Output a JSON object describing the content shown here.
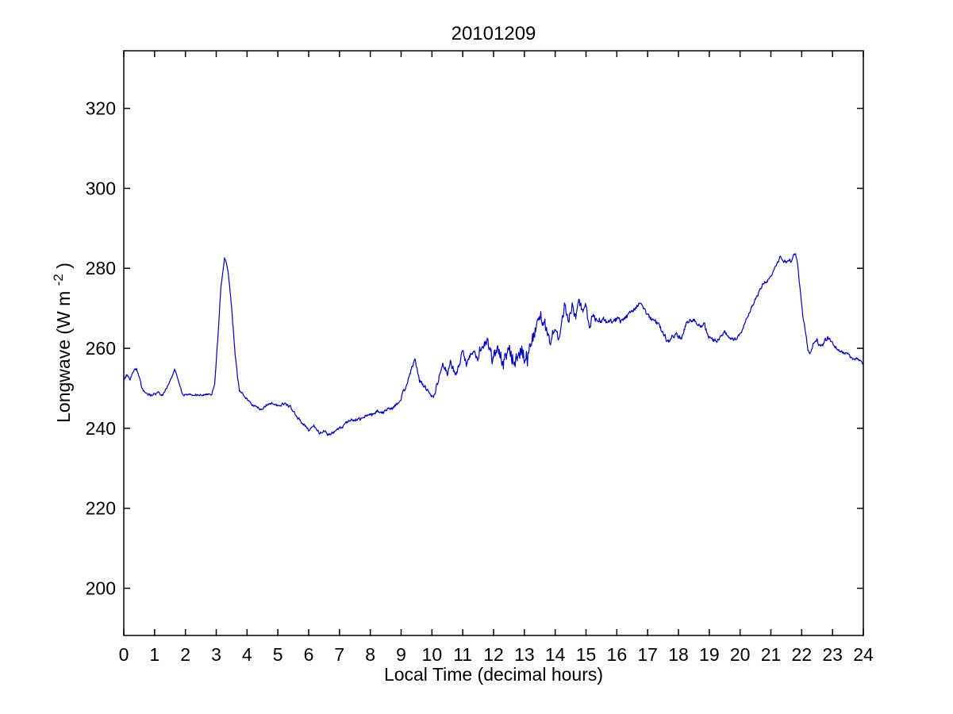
{
  "figure": {
    "background": "#ffffff",
    "axis_color": "#000000"
  },
  "chart_data": {
    "type": "line",
    "title": "20101209",
    "xlabel": "Local Time (decimal hours)",
    "ylabel": "Longwave (W m-2)",
    "ylabel_parts": {
      "main": "Longwave (W m",
      "sup": "-2",
      "close": ")"
    },
    "axes": {
      "xlim": [
        0,
        24
      ],
      "ylim": [
        188.2,
        334.4
      ],
      "xticks": [
        0,
        1,
        2,
        3,
        4,
        5,
        6,
        7,
        8,
        9,
        10,
        11,
        12,
        13,
        14,
        15,
        16,
        17,
        18,
        19,
        20,
        21,
        22,
        23,
        24
      ],
      "yticks": [
        200,
        220,
        240,
        260,
        280,
        300,
        320
      ],
      "grid": false,
      "box": true
    },
    "series": [
      {
        "name": "longwave",
        "color": "#0000BB",
        "sampling_hours": 0.0166667,
        "noise_seed": 20101209,
        "keypoints_format": [
          "t_hours",
          "value_W_m2",
          "noise_amplitude"
        ],
        "keypoints": [
          [
            0.0,
            252.0,
            0.6
          ],
          [
            0.1,
            253.2,
            0.6
          ],
          [
            0.19,
            251.8,
            0.6
          ],
          [
            0.31,
            253.8,
            0.5
          ],
          [
            0.41,
            255.0,
            0.4
          ],
          [
            0.49,
            252.8,
            0.5
          ],
          [
            0.57,
            250.4,
            0.4
          ],
          [
            0.66,
            249.2,
            0.4
          ],
          [
            0.75,
            248.4,
            0.35
          ],
          [
            1.0,
            248.5,
            0.35
          ],
          [
            1.13,
            248.8,
            0.35
          ],
          [
            1.26,
            248.2,
            0.3
          ],
          [
            1.44,
            250.8,
            0.3
          ],
          [
            1.57,
            252.8,
            0.3
          ],
          [
            1.65,
            255.0,
            0.3
          ],
          [
            1.78,
            251.8,
            0.3
          ],
          [
            1.91,
            248.4,
            0.3
          ],
          [
            2.1,
            248.3,
            0.3
          ],
          [
            2.34,
            248.4,
            0.3
          ],
          [
            2.6,
            248.3,
            0.3
          ],
          [
            2.85,
            248.6,
            0.3
          ],
          [
            2.95,
            251.0,
            0.3
          ],
          [
            3.05,
            262.0,
            0.5
          ],
          [
            3.15,
            275.0,
            0.5
          ],
          [
            3.27,
            282.5,
            0.5
          ],
          [
            3.38,
            279.5,
            0.5
          ],
          [
            3.5,
            270.0,
            0.5
          ],
          [
            3.62,
            257.5,
            0.5
          ],
          [
            3.75,
            249.5,
            0.4
          ],
          [
            3.9,
            248.0,
            0.4
          ],
          [
            4.1,
            246.3,
            0.35
          ],
          [
            4.3,
            245.4,
            0.35
          ],
          [
            4.45,
            244.7,
            0.35
          ],
          [
            4.62,
            245.8,
            0.35
          ],
          [
            4.8,
            246.2,
            0.35
          ],
          [
            5.0,
            245.7,
            0.35
          ],
          [
            5.2,
            246.1,
            0.35
          ],
          [
            5.4,
            245.4,
            0.35
          ],
          [
            5.6,
            243.2,
            0.4
          ],
          [
            5.8,
            241.2,
            0.4
          ],
          [
            6.0,
            239.6,
            0.4
          ],
          [
            6.18,
            240.6,
            0.4
          ],
          [
            6.35,
            238.9,
            0.4
          ],
          [
            6.5,
            239.4,
            0.4
          ],
          [
            6.65,
            238.4,
            0.4
          ],
          [
            6.85,
            239.2,
            0.4
          ],
          [
            7.1,
            240.3,
            0.4
          ],
          [
            7.35,
            242.1,
            0.45
          ],
          [
            7.6,
            242.0,
            0.45
          ],
          [
            7.85,
            243.1,
            0.45
          ],
          [
            8.05,
            243.3,
            0.45
          ],
          [
            8.2,
            244.3,
            0.45
          ],
          [
            8.35,
            243.6,
            0.45
          ],
          [
            8.55,
            244.6,
            0.45
          ],
          [
            8.75,
            245.3,
            0.45
          ],
          [
            8.95,
            246.5,
            0.5
          ],
          [
            9.15,
            250.5,
            0.5
          ],
          [
            9.3,
            254.0,
            0.5
          ],
          [
            9.45,
            257.2,
            0.5
          ],
          [
            9.6,
            252.0,
            0.6
          ],
          [
            9.75,
            250.4,
            0.6
          ],
          [
            9.9,
            249.0,
            0.6
          ],
          [
            10.05,
            247.6,
            0.6
          ],
          [
            10.2,
            252.0,
            0.8
          ],
          [
            10.35,
            256.2,
            0.8
          ],
          [
            10.5,
            254.0,
            0.9
          ],
          [
            10.62,
            256.6,
            0.9
          ],
          [
            10.75,
            253.2,
            0.9
          ],
          [
            10.9,
            256.0,
            1.0
          ],
          [
            11.0,
            258.8,
            1.0
          ],
          [
            11.12,
            255.5,
            1.0
          ],
          [
            11.3,
            259.2,
            1.1
          ],
          [
            11.45,
            257.0,
            1.3
          ],
          [
            11.6,
            260.5,
            1.4
          ],
          [
            11.77,
            262.0,
            1.5
          ],
          [
            11.95,
            257.5,
            1.8
          ],
          [
            12.1,
            260.0,
            2.0
          ],
          [
            12.3,
            256.0,
            2.2
          ],
          [
            12.5,
            259.0,
            2.2
          ],
          [
            12.7,
            257.0,
            2.2
          ],
          [
            12.9,
            259.5,
            2.2
          ],
          [
            13.1,
            257.5,
            2.2
          ],
          [
            13.3,
            262.5,
            2.0
          ],
          [
            13.5,
            268.5,
            1.6
          ],
          [
            13.65,
            266.5,
            1.6
          ],
          [
            13.8,
            261.5,
            1.6
          ],
          [
            13.95,
            264.5,
            1.6
          ],
          [
            14.1,
            262.5,
            1.5
          ],
          [
            14.31,
            271.0,
            1.2
          ],
          [
            14.42,
            266.5,
            1.4
          ],
          [
            14.55,
            271.0,
            1.4
          ],
          [
            14.65,
            267.2,
            1.4
          ],
          [
            14.78,
            271.5,
            1.2
          ],
          [
            14.88,
            269.6,
            1.2
          ],
          [
            15.0,
            271.0,
            1.0
          ],
          [
            15.1,
            264.8,
            1.0
          ],
          [
            15.22,
            268.2,
            0.9
          ],
          [
            15.35,
            266.8,
            0.8
          ],
          [
            15.5,
            267.3,
            0.8
          ],
          [
            15.65,
            266.6,
            0.8
          ],
          [
            15.8,
            267.0,
            0.8
          ],
          [
            16.0,
            267.2,
            0.7
          ],
          [
            16.2,
            266.9,
            0.7
          ],
          [
            16.4,
            268.6,
            0.6
          ],
          [
            16.6,
            270.0,
            0.6
          ],
          [
            16.76,
            271.4,
            0.5
          ],
          [
            16.93,
            269.0,
            0.6
          ],
          [
            17.1,
            267.6,
            0.6
          ],
          [
            17.3,
            266.3,
            0.6
          ],
          [
            17.5,
            264.0,
            0.6
          ],
          [
            17.66,
            261.4,
            0.6
          ],
          [
            17.8,
            263.1,
            0.6
          ],
          [
            17.95,
            263.3,
            0.6
          ],
          [
            18.1,
            262.5,
            0.6
          ],
          [
            18.26,
            266.3,
            0.6
          ],
          [
            18.47,
            267.3,
            0.6
          ],
          [
            18.65,
            265.7,
            0.6
          ],
          [
            18.85,
            266.1,
            0.6
          ],
          [
            18.95,
            263.1,
            0.6
          ],
          [
            19.1,
            262.1,
            0.5
          ],
          [
            19.3,
            261.9,
            0.5
          ],
          [
            19.5,
            264.1,
            0.5
          ],
          [
            19.72,
            262.3,
            0.5
          ],
          [
            19.9,
            262.2,
            0.5
          ],
          [
            20.06,
            264.1,
            0.5
          ],
          [
            20.2,
            267.0,
            0.5
          ],
          [
            20.35,
            269.8,
            0.5
          ],
          [
            20.5,
            272.5,
            0.5
          ],
          [
            20.65,
            274.6,
            0.5
          ],
          [
            20.78,
            276.5,
            0.5
          ],
          [
            20.9,
            277.2,
            0.5
          ],
          [
            21.05,
            278.9,
            0.5
          ],
          [
            21.2,
            280.9,
            0.5
          ],
          [
            21.3,
            282.5,
            0.5
          ],
          [
            21.42,
            281.8,
            0.5
          ],
          [
            21.56,
            281.5,
            0.5
          ],
          [
            21.66,
            281.9,
            0.5
          ],
          [
            21.74,
            284.0,
            0.4
          ],
          [
            21.8,
            283.3,
            0.4
          ],
          [
            21.88,
            280.5,
            0.4
          ],
          [
            21.95,
            274.5,
            0.4
          ],
          [
            22.03,
            268.5,
            0.4
          ],
          [
            22.12,
            264.0,
            0.4
          ],
          [
            22.2,
            260.0,
            0.5
          ],
          [
            22.26,
            259.0,
            0.5
          ],
          [
            22.38,
            261.7,
            0.6
          ],
          [
            22.5,
            261.8,
            0.6
          ],
          [
            22.63,
            260.2,
            0.6
          ],
          [
            22.84,
            262.9,
            0.6
          ],
          [
            23.0,
            261.2,
            0.5
          ],
          [
            23.2,
            259.8,
            0.5
          ],
          [
            23.4,
            258.9,
            0.5
          ],
          [
            23.6,
            257.7,
            0.45
          ],
          [
            23.8,
            257.1,
            0.45
          ],
          [
            24.0,
            256.4,
            0.45
          ]
        ]
      }
    ]
  }
}
